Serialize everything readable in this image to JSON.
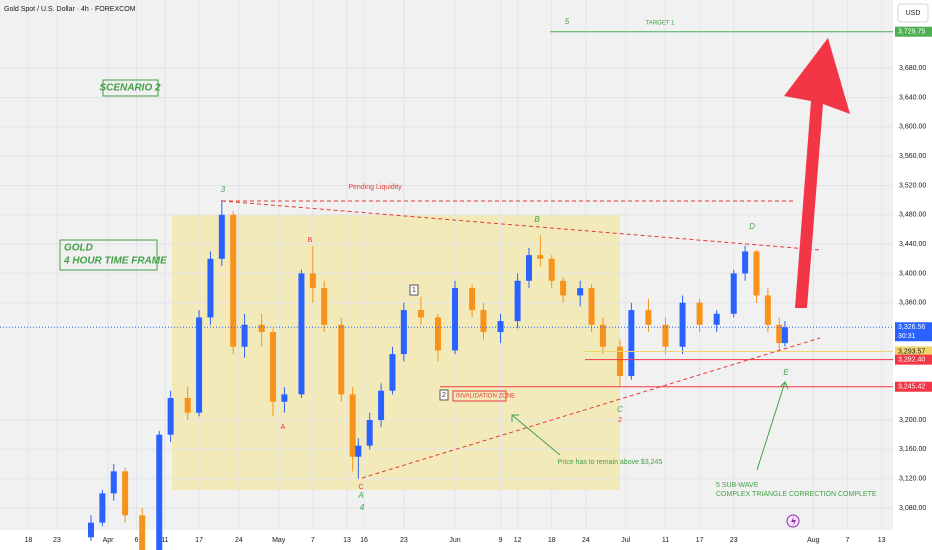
{
  "header": {
    "symbol": "Gold Spot / U.S. Dollar · 4h · FOREXCOM",
    "currency": "USD",
    "countdown": "30:31"
  },
  "annotations": {
    "scenario": "SCENARIO 2",
    "gold": "GOLD",
    "timeframe": "4 HOUR TIME FRAME",
    "pending": "Pending Liquidity",
    "target": "TARGET 1",
    "invalidation": "INVALIDATION ZONE",
    "remain": "Price has to remain above $3,245",
    "subwave": "5 SUB-WAVE",
    "complete": "COMPLEX TRIANGLE CORRECTION COMPLETE"
  },
  "waves": [
    "3",
    "B",
    "A",
    "1",
    "2",
    "C",
    "A",
    "4",
    "B",
    "C",
    "2",
    "D",
    "E",
    "5"
  ],
  "chart_data": {
    "type": "candlestick",
    "up_color": "#2962ff",
    "down_color": "#f7931a",
    "xlim": [
      -5,
      152
    ],
    "ylim": [
      3050,
      3773
    ],
    "xticks": [
      {
        "value": 0,
        "label": "18"
      },
      {
        "value": 5,
        "label": "23"
      },
      {
        "value": 14,
        "label": "Apr"
      },
      {
        "value": 19,
        "label": "6"
      },
      {
        "value": 24,
        "label": "11"
      },
      {
        "value": 30,
        "label": "17"
      },
      {
        "value": 37,
        "label": "24"
      },
      {
        "value": 44,
        "label": "May"
      },
      {
        "value": 50,
        "label": "7"
      },
      {
        "value": 56,
        "label": "13"
      },
      {
        "value": 59,
        "label": "16"
      },
      {
        "value": 66,
        "label": "23"
      },
      {
        "value": 75,
        "label": "Jun"
      },
      {
        "value": 83,
        "label": "9"
      },
      {
        "value": 86,
        "label": "12"
      },
      {
        "value": 92,
        "label": "18"
      },
      {
        "value": 98,
        "label": "24"
      },
      {
        "value": 105,
        "label": "Jul"
      },
      {
        "value": 112,
        "label": "11"
      },
      {
        "value": 118,
        "label": "17"
      },
      {
        "value": 124,
        "label": "23"
      },
      {
        "value": 138,
        "label": "Aug"
      },
      {
        "value": 144,
        "label": "7"
      },
      {
        "value": 150,
        "label": "13"
      }
    ],
    "yticks": [
      {
        "value": 3080,
        "label": "3,080.00"
      },
      {
        "value": 3120,
        "label": "3,120.00"
      },
      {
        "value": 3160,
        "label": "3,160.00"
      },
      {
        "value": 3200,
        "label": "3,200.00"
      },
      {
        "value": 3360,
        "label": "3,360.00"
      },
      {
        "value": 3400,
        "label": "3,400.00"
      },
      {
        "value": 3440,
        "label": "3,440.00"
      },
      {
        "value": 3480,
        "label": "3,480.00"
      },
      {
        "value": 3520,
        "label": "3,520.00"
      },
      {
        "value": 3560,
        "label": "3,560.00"
      },
      {
        "value": 3600,
        "label": "3,600.00"
      },
      {
        "value": 3640,
        "label": "3,640.00"
      },
      {
        "value": 3680,
        "label": "3,680.00"
      }
    ],
    "price_tags": [
      {
        "value": 3729.75,
        "label": "3,729.75",
        "color": "#4caf50"
      },
      {
        "value": 3326.56,
        "label": "3,326.56",
        "color": "#2962ff"
      },
      {
        "value": 3293.57,
        "label": "3,293.57",
        "color": "#f2d46b"
      },
      {
        "value": 3282.4,
        "label": "3,282.40",
        "color": "#f23645"
      },
      {
        "value": 3245.42,
        "label": "3,245.42",
        "color": "#f23645"
      }
    ],
    "candles": [
      {
        "x": 11,
        "o": 3040,
        "h": 3070,
        "l": 3035,
        "c": 3060
      },
      {
        "x": 13,
        "o": 3060,
        "h": 3105,
        "l": 3055,
        "c": 3100
      },
      {
        "x": 15,
        "o": 3100,
        "h": 3140,
        "l": 3090,
        "c": 3130
      },
      {
        "x": 17,
        "o": 3130,
        "h": 3135,
        "l": 3060,
        "c": 3070
      },
      {
        "x": 20,
        "o": 3070,
        "h": 3080,
        "l": 3010,
        "c": 3020
      },
      {
        "x": 23,
        "o": 3020,
        "h": 3185,
        "l": 3015,
        "c": 3180
      },
      {
        "x": 25,
        "o": 3180,
        "h": 3240,
        "l": 3170,
        "c": 3230
      },
      {
        "x": 28,
        "o": 3230,
        "h": 3245,
        "l": 3200,
        "c": 3210
      },
      {
        "x": 30,
        "o": 3210,
        "h": 3350,
        "l": 3205,
        "c": 3340
      },
      {
        "x": 32,
        "o": 3340,
        "h": 3430,
        "l": 3330,
        "c": 3420
      },
      {
        "x": 34,
        "o": 3420,
        "h": 3500,
        "l": 3410,
        "c": 3480
      },
      {
        "x": 36,
        "o": 3480,
        "h": 3485,
        "l": 3290,
        "c": 3300
      },
      {
        "x": 38,
        "o": 3300,
        "h": 3345,
        "l": 3285,
        "c": 3330
      },
      {
        "x": 41,
        "o": 3330,
        "h": 3345,
        "l": 3300,
        "c": 3320
      },
      {
        "x": 43,
        "o": 3320,
        "h": 3325,
        "l": 3205,
        "c": 3225
      },
      {
        "x": 45,
        "o": 3225,
        "h": 3245,
        "l": 3210,
        "c": 3235
      },
      {
        "x": 48,
        "o": 3235,
        "h": 3405,
        "l": 3230,
        "c": 3400
      },
      {
        "x": 50,
        "o": 3400,
        "h": 3437,
        "l": 3360,
        "c": 3380
      },
      {
        "x": 52,
        "o": 3380,
        "h": 3390,
        "l": 3320,
        "c": 3330
      },
      {
        "x": 55,
        "o": 3330,
        "h": 3340,
        "l": 3225,
        "c": 3235
      },
      {
        "x": 57,
        "o": 3235,
        "h": 3245,
        "l": 3130,
        "c": 3150
      },
      {
        "x": 58,
        "o": 3150,
        "h": 3175,
        "l": 3120,
        "c": 3165
      },
      {
        "x": 60,
        "o": 3165,
        "h": 3210,
        "l": 3160,
        "c": 3200
      },
      {
        "x": 62,
        "o": 3200,
        "h": 3250,
        "l": 3190,
        "c": 3240
      },
      {
        "x": 64,
        "o": 3240,
        "h": 3300,
        "l": 3235,
        "c": 3290
      },
      {
        "x": 66,
        "o": 3290,
        "h": 3360,
        "l": 3280,
        "c": 3350
      },
      {
        "x": 69,
        "o": 3350,
        "h": 3368,
        "l": 3330,
        "c": 3340
      },
      {
        "x": 72,
        "o": 3340,
        "h": 3345,
        "l": 3280,
        "c": 3295
      },
      {
        "x": 75,
        "o": 3295,
        "h": 3390,
        "l": 3290,
        "c": 3380
      },
      {
        "x": 78,
        "o": 3380,
        "h": 3385,
        "l": 3340,
        "c": 3350
      },
      {
        "x": 80,
        "o": 3350,
        "h": 3360,
        "l": 3310,
        "c": 3320
      },
      {
        "x": 83,
        "o": 3320,
        "h": 3345,
        "l": 3305,
        "c": 3335
      },
      {
        "x": 86,
        "o": 3335,
        "h": 3400,
        "l": 3325,
        "c": 3390
      },
      {
        "x": 88,
        "o": 3390,
        "h": 3435,
        "l": 3380,
        "c": 3425
      },
      {
        "x": 90,
        "o": 3425,
        "h": 3452,
        "l": 3410,
        "c": 3420
      },
      {
        "x": 92,
        "o": 3420,
        "h": 3425,
        "l": 3380,
        "c": 3390
      },
      {
        "x": 94,
        "o": 3390,
        "h": 3395,
        "l": 3360,
        "c": 3370
      },
      {
        "x": 97,
        "o": 3370,
        "h": 3390,
        "l": 3355,
        "c": 3380
      },
      {
        "x": 99,
        "o": 3380,
        "h": 3385,
        "l": 3320,
        "c": 3330
      },
      {
        "x": 101,
        "o": 3330,
        "h": 3340,
        "l": 3290,
        "c": 3300
      },
      {
        "x": 104,
        "o": 3300,
        "h": 3310,
        "l": 3247,
        "c": 3260
      },
      {
        "x": 106,
        "o": 3260,
        "h": 3360,
        "l": 3255,
        "c": 3350
      },
      {
        "x": 109,
        "o": 3350,
        "h": 3365,
        "l": 3320,
        "c": 3330
      },
      {
        "x": 112,
        "o": 3330,
        "h": 3340,
        "l": 3290,
        "c": 3300
      },
      {
        "x": 115,
        "o": 3300,
        "h": 3370,
        "l": 3290,
        "c": 3360
      },
      {
        "x": 118,
        "o": 3360,
        "h": 3365,
        "l": 3320,
        "c": 3330
      },
      {
        "x": 121,
        "o": 3330,
        "h": 3350,
        "l": 3320,
        "c": 3345
      },
      {
        "x": 124,
        "o": 3345,
        "h": 3405,
        "l": 3340,
        "c": 3400
      },
      {
        "x": 126,
        "o": 3400,
        "h": 3438,
        "l": 3390,
        "c": 3430
      },
      {
        "x": 128,
        "o": 3430,
        "h": 3432,
        "l": 3360,
        "c": 3370
      },
      {
        "x": 130,
        "o": 3370,
        "h": 3380,
        "l": 3320,
        "c": 3330
      },
      {
        "x": 132,
        "o": 3330,
        "h": 3340,
        "l": 3295,
        "c": 3305
      },
      {
        "x": 133,
        "o": 3305,
        "h": 3335,
        "l": 3300,
        "c": 3326.56
      }
    ]
  }
}
